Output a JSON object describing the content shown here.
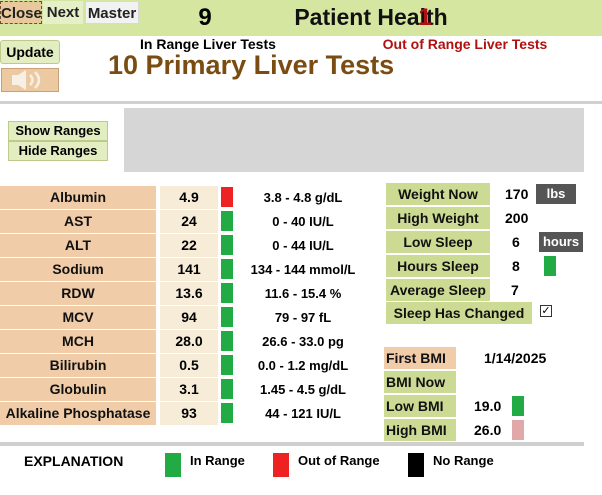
{
  "window": {
    "title": "Patient Health",
    "subtitle": "10 Primary Liver Tests"
  },
  "toolbar": {
    "close_label": "Close",
    "next_label": "Next",
    "master_label": "Master",
    "update_label": "Update",
    "speaker_icon": "speaker-icon"
  },
  "ranges": {
    "show_label": "Show Ranges",
    "hide_label": "Hide Ranges"
  },
  "summary": {
    "in_range_count": "9",
    "in_range_label": "In Range Liver Tests",
    "out_range_count": "1",
    "out_range_label": "Out of  Range Liver Tests"
  },
  "tests": [
    {
      "name": "Albumin",
      "value": "4.9",
      "status": "out",
      "range": "3.8 - 4.8 g/dL"
    },
    {
      "name": "AST",
      "value": "24",
      "status": "in",
      "range": "0 - 40 IU/L"
    },
    {
      "name": "ALT",
      "value": "22",
      "status": "in",
      "range": "0 - 44 IU/L"
    },
    {
      "name": "Sodium",
      "value": "141",
      "status": "in",
      "range": "134 - 144 mmol/L"
    },
    {
      "name": "RDW",
      "value": "13.6",
      "status": "in",
      "range": "11.6 - 15.4 %"
    },
    {
      "name": "MCV",
      "value": "94",
      "status": "in",
      "range": "79 - 97 fL"
    },
    {
      "name": "MCH",
      "value": "28.0",
      "status": "in",
      "range": "26.6 - 33.0 pg"
    },
    {
      "name": "Bilirubin",
      "value": "0.5",
      "status": "in",
      "range": "0.0 - 1.2 mg/dL"
    },
    {
      "name": "Globulin",
      "value": "3.1",
      "status": "in",
      "range": "1.45 - 4.5 g/dL"
    },
    {
      "name": "Alkaline Phosphatase",
      "value": "93",
      "status": "in",
      "range": "44 - 121 IU/L"
    }
  ],
  "body": {
    "weight_now_label": "Weight Now",
    "weight_now": "170",
    "weight_unit": "lbs",
    "high_weight_label": "High Weight",
    "high_weight": "200",
    "low_sleep_label": "Low  Sleep",
    "low_sleep": "6",
    "sleep_unit": "hours",
    "hours_sleep_label": "Hours Sleep",
    "hours_sleep": "8",
    "avg_sleep_label": "Average Sleep",
    "avg_sleep": "7",
    "sleep_changed_label": "Sleep Has Changed",
    "sleep_changed_mark": "✓"
  },
  "bmi": {
    "first_label": "First  BMI",
    "first_date": "1/14/2025",
    "now_label": "BMI Now",
    "low_label": "Low BMI",
    "low_value": "19.0",
    "high_label": "High BMI",
    "high_value": "26.0"
  },
  "legend": {
    "explanation": "EXPLANATION",
    "in_range": "In Range",
    "out_range": "Out of Range",
    "no_range": "No Range"
  },
  "colors": {
    "in_range": "#22aa44",
    "out_range": "#ee2222",
    "no_range": "#000000",
    "high_bmi_box": "#e0a8a8",
    "out_count": "#b01010",
    "accent_green": "#ccdb94",
    "accent_tan": "#f0cca8"
  }
}
